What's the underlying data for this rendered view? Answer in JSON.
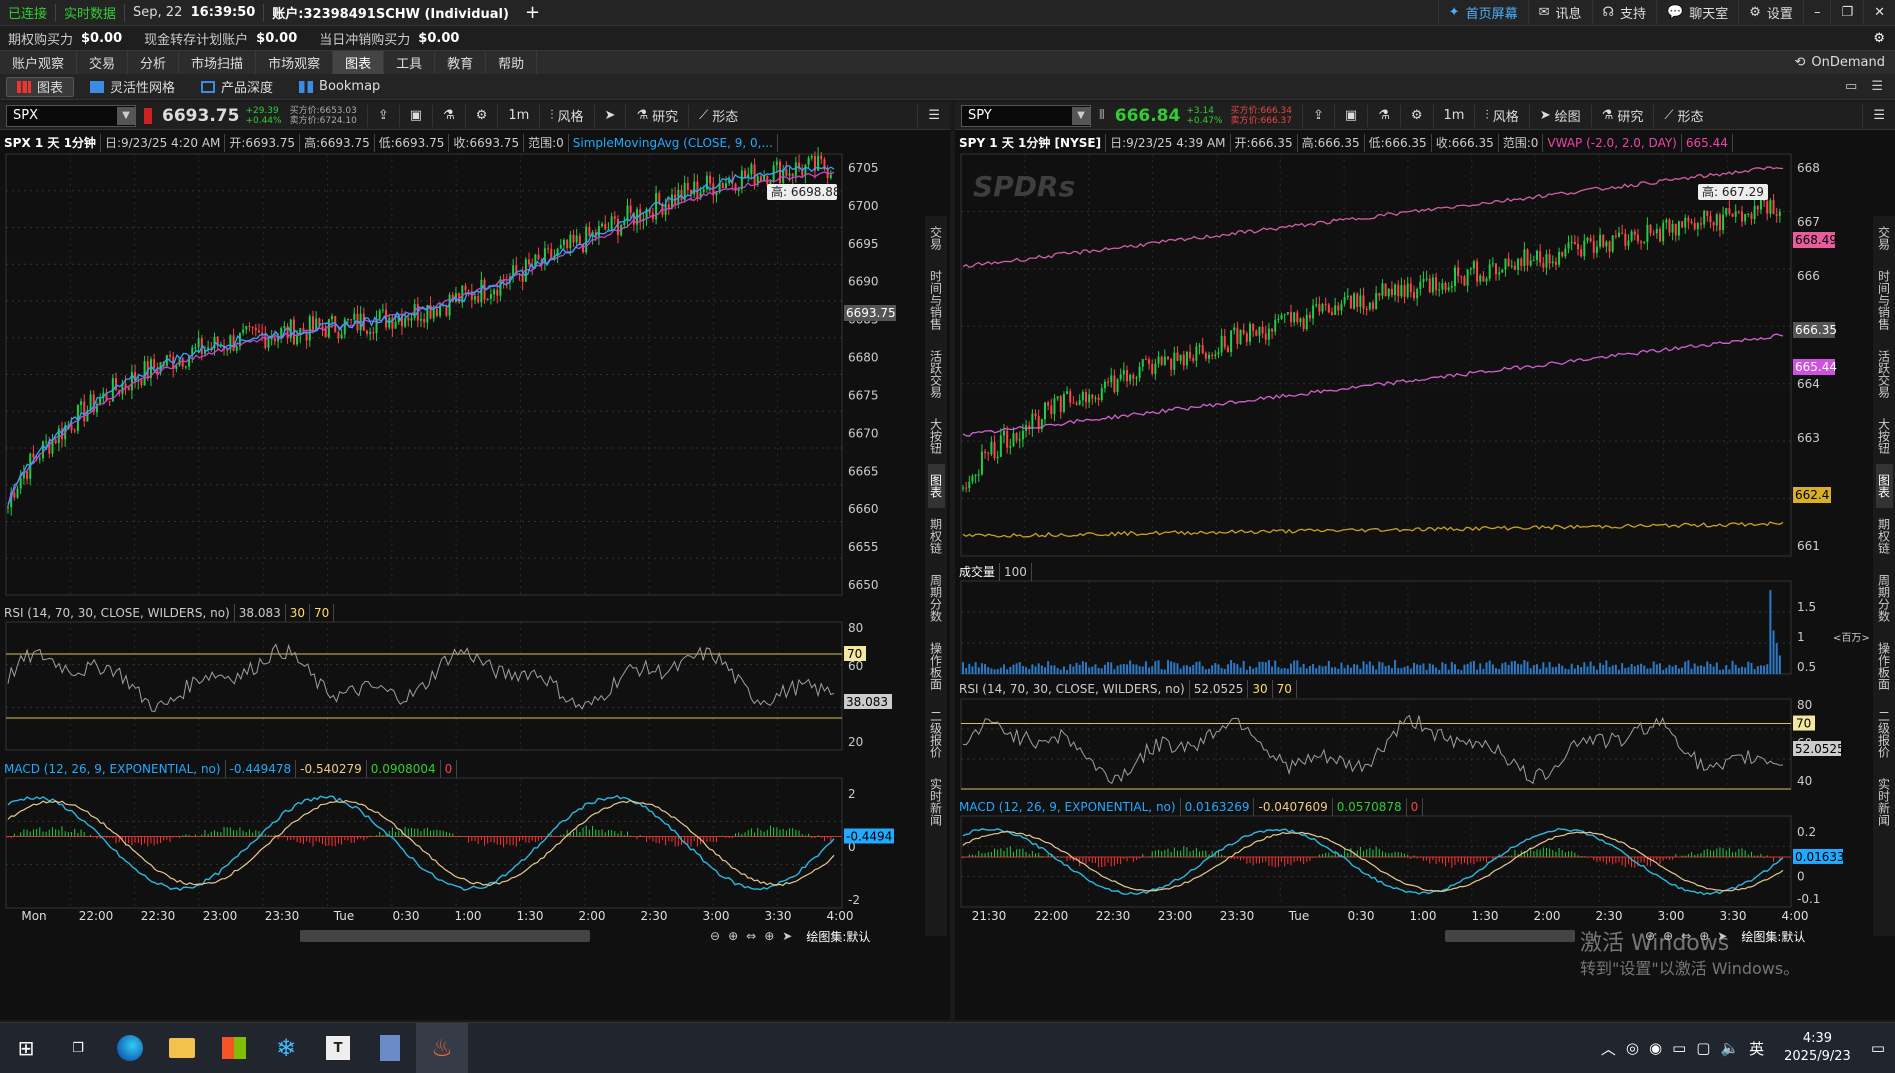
{
  "topbar": {
    "connected": "已连接",
    "realtime": "实时数据",
    "date": "Sep, 22",
    "time": "16:39:50",
    "account": "账户:32398491SCHW (Individual)",
    "plus": "+",
    "home": "首页屏幕",
    "messages": "讯息",
    "support": "支持",
    "chat": "聊天室",
    "settings": "设置"
  },
  "buying_power": {
    "options_label": "期权购买力",
    "options_value": "$0.00",
    "cash_label": "现金转存计划账户",
    "cash_value": "$0.00",
    "daytrade_label": "当日冲销购买力",
    "daytrade_value": "$0.00"
  },
  "nav": {
    "tabs": [
      "账户观察",
      "交易",
      "分析",
      "市场扫描",
      "市场观察",
      "图表",
      "工具",
      "教育",
      "帮助"
    ],
    "active": "图表",
    "ondemand": "OnDemand"
  },
  "subnav": {
    "tabs": [
      "图表",
      "灵活性网格",
      "产品深度",
      "Bookmap"
    ],
    "active": "图表"
  },
  "colors": {
    "up": "#22cc44",
    "down": "#ff4444",
    "accent_blue": "#2aa8ff",
    "rsi": "#a0a0a0",
    "sma": "#cc44cc",
    "vwap": "#d060a0",
    "lower_band": "#c8a020"
  },
  "left": {
    "symbol": "SPX",
    "price": "6693.75",
    "change": "+29.39",
    "change_pct": "+0.44%",
    "bid": "买方价:6653.03",
    "ask": "卖方价:6724.10",
    "tools": {
      "timeframe": "1m",
      "style": "风格",
      "studies": "研究",
      "patterns": "形态"
    },
    "header": {
      "title": "SPX 1 天 1分钟",
      "date": "日:9/23/25 4:20 AM",
      "open": "开:6693.75",
      "high": "高:6693.75",
      "low": "低:6693.75",
      "close": "收:6693.75",
      "range": "范围:0",
      "study": "SimpleMovingAvg (CLOSE, 9, 0,..."
    },
    "price_axis": [
      "6705",
      "6700",
      "6695",
      "6690",
      "6685",
      "6680",
      "6675",
      "6670",
      "6665",
      "6660",
      "6655",
      "6650"
    ],
    "high_label": "高: 6698.88",
    "last_label": "6693.75",
    "rsi": {
      "label": "RSI (14, 70, 30, CLOSE, WILDERS, no)",
      "value": "38.083",
      "lo": "30",
      "hi": "70",
      "axis": [
        "80",
        "60",
        "40",
        "20"
      ],
      "badge70": "70",
      "last": "38.083"
    },
    "macd": {
      "label": "MACD (12, 26, 9, EXPONENTIAL, no)",
      "v1": "-0.449478",
      "v2": "-0.540279",
      "v3": "0.0908004",
      "v4": "0",
      "axis": [
        "2",
        "0",
        "-2"
      ],
      "last": "-0.4494"
    },
    "time_axis": [
      "Mon",
      "22:00",
      "22:30",
      "23:00",
      "23:30",
      "Tue",
      "0:30",
      "1:00",
      "1:30",
      "2:00",
      "2:30",
      "3:00",
      "3:30",
      "4:00"
    ],
    "footer": "绘图集:默认",
    "sidebar": [
      "交易",
      "时间与销售",
      "活跃交易",
      "大按钮",
      "图表",
      "期权链",
      "周期分数",
      "操作板面",
      "二级报价",
      "实时新闻"
    ]
  },
  "right": {
    "symbol": "SPY",
    "price": "666.84",
    "change": "+3.14",
    "change_pct": "+0.47%",
    "bid": "买方价:666.34",
    "ask": "卖方价:666.37",
    "tools": {
      "timeframe": "1m",
      "style": "风格",
      "draw": "绘图",
      "studies": "研究",
      "patterns": "形态"
    },
    "header": {
      "title": "SPY 1 天 1分钟 [NYSE]",
      "date": "日:9/23/25 4:39 AM",
      "open": "开:666.35",
      "high": "高:666.35",
      "low": "低:666.35",
      "close": "收:666.35",
      "range": "范围:0",
      "study": "VWAP (-2.0, 2.0, DAY)",
      "study_val": "665.44"
    },
    "price_axis": [
      "668",
      "667",
      "666",
      "665",
      "664",
      "663",
      "662",
      "661"
    ],
    "high_label": "高: 667.29",
    "last_label": "666.35",
    "upper_band": "668.49",
    "vwap_label": "665.44",
    "lower_band": "662.4",
    "logo": "SPDRs",
    "volume": {
      "label": "成交量",
      "period": "100",
      "axis": [
        "1.5",
        "1",
        "0.5"
      ],
      "unit": "<百万>"
    },
    "rsi": {
      "label": "RSI (14, 70, 30, CLOSE, WILDERS, no)",
      "value": "52.0525",
      "lo": "30",
      "hi": "70",
      "axis": [
        "80",
        "60",
        "40"
      ],
      "badge70": "70",
      "last": "52.0525"
    },
    "macd": {
      "label": "MACD (12, 26, 9, EXPONENTIAL, no)",
      "v1": "0.0163269",
      "v2": "-0.0407609",
      "v3": "0.0570878",
      "v4": "0",
      "axis": [
        "0.2",
        "0.1",
        "0",
        "-0.1"
      ],
      "last": "0.01633"
    },
    "time_axis": [
      "21:30",
      "22:00",
      "22:30",
      "23:00",
      "23:30",
      "Tue",
      "0:30",
      "1:00",
      "1:30",
      "2:00",
      "2:30",
      "3:00",
      "3:30",
      "4:00"
    ],
    "footer": "绘图集:默认",
    "sidebar": [
      "交易",
      "时间与销售",
      "活跃交易",
      "大按钮",
      "图表",
      "期权链",
      "周期分数",
      "操作板面",
      "二级报价",
      "实时新闻"
    ]
  },
  "watermark": {
    "line1": "激活 Windows",
    "line2": "转到\"设置\"以激活 Windows。"
  },
  "taskbar": {
    "ime": "英",
    "time": "4:39",
    "date": "2025/9/23"
  }
}
